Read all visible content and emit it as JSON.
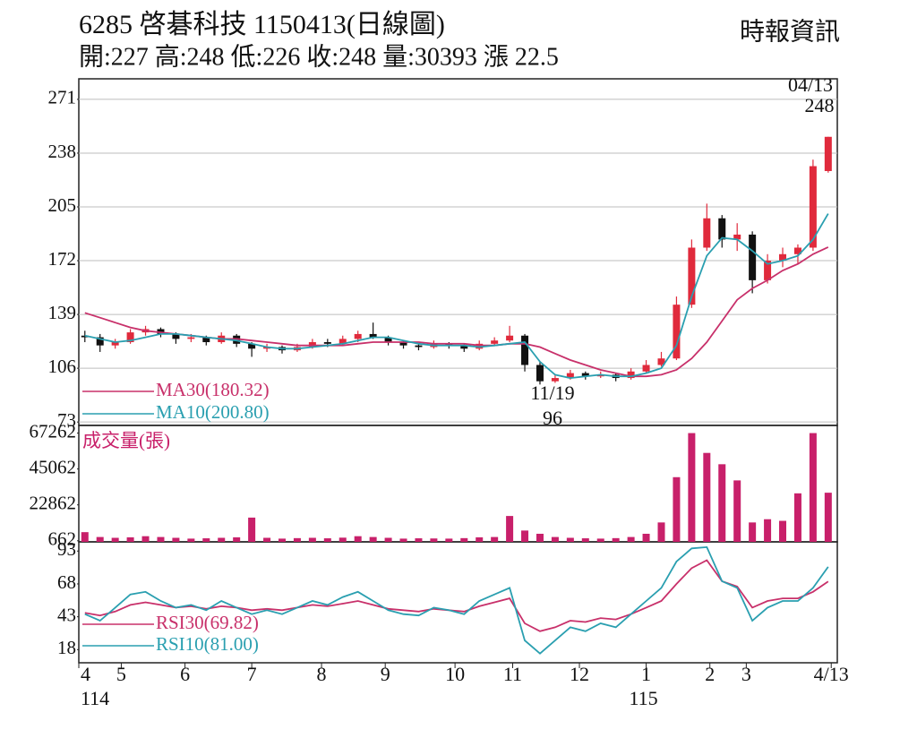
{
  "chart_data": [
    {
      "type": "candlestick",
      "title": "6285  啓碁科技 1150413(日線圖)",
      "stats": "開:227 高:248 低:226 收:248 量:30393 漲 22.5",
      "source": "時報資訊",
      "x": [
        2,
        7,
        12,
        17,
        22,
        27,
        32,
        37,
        42,
        47,
        52,
        57,
        62,
        67,
        72,
        77,
        82,
        87,
        92,
        97,
        102,
        107,
        112,
        117,
        122,
        127,
        132,
        137,
        142,
        147,
        152,
        157,
        162,
        167,
        172,
        177,
        182,
        187,
        192,
        197,
        202,
        207,
        212,
        217,
        222,
        227,
        232,
        237,
        242,
        247
      ],
      "open": [
        126,
        125,
        120,
        122,
        128,
        130,
        127,
        124,
        125,
        122,
        126,
        121,
        118,
        119,
        117,
        119,
        122,
        121,
        124,
        127,
        125,
        122,
        120,
        119,
        121,
        120,
        118,
        121,
        123,
        126,
        108,
        98,
        100,
        103,
        101,
        102,
        100,
        104,
        108,
        112,
        145,
        180,
        198,
        185,
        188,
        160,
        172,
        176,
        180,
        227
      ],
      "high": [
        129,
        127,
        124,
        130,
        132,
        131,
        128,
        127,
        126,
        128,
        127,
        122,
        121,
        120,
        121,
        124,
        124,
        126,
        129,
        134,
        126,
        123,
        121,
        123,
        122,
        121,
        123,
        125,
        132,
        127,
        110,
        102,
        105,
        104,
        104,
        103,
        106,
        111,
        116,
        150,
        185,
        207,
        200,
        195,
        190,
        176,
        180,
        182,
        234,
        248
      ],
      "low": [
        122,
        116,
        118,
        121,
        126,
        125,
        121,
        122,
        120,
        121,
        119,
        113,
        116,
        115,
        116,
        118,
        119,
        120,
        122,
        124,
        120,
        118,
        117,
        118,
        118,
        116,
        117,
        120,
        122,
        104,
        96,
        97,
        99,
        99,
        100,
        98,
        99,
        103,
        107,
        111,
        143,
        178,
        180,
        178,
        152,
        158,
        168,
        170,
        178,
        226
      ],
      "close": [
        125,
        120,
        122,
        128,
        130,
        127,
        124,
        125,
        122,
        126,
        121,
        118,
        119,
        117,
        119,
        122,
        121,
        124,
        127,
        125,
        122,
        120,
        119,
        121,
        120,
        118,
        121,
        123,
        126,
        108,
        98,
        100,
        103,
        101,
        102,
        100,
        104,
        108,
        112,
        145,
        180,
        198,
        185,
        188,
        160,
        172,
        176,
        180,
        230,
        248
      ],
      "up_color": "#e02a3c",
      "down_color": "#111111",
      "xlim": [
        0,
        250
      ],
      "xticks": [
        {
          "value": 0,
          "label": "4"
        },
        {
          "value": 14,
          "label": "5"
        },
        {
          "value": 35,
          "label": "6"
        },
        {
          "value": 57,
          "label": "7"
        },
        {
          "value": 80,
          "label": "8"
        },
        {
          "value": 101,
          "label": "9"
        },
        {
          "value": 124,
          "label": "10"
        },
        {
          "value": 143,
          "label": "11"
        },
        {
          "value": 165,
          "label": "12"
        },
        {
          "value": 187,
          "label": "1"
        },
        {
          "value": 208,
          "label": "2"
        },
        {
          "value": 220,
          "label": "3"
        },
        {
          "value": 248,
          "label": "4/13"
        }
      ],
      "year_labels": [
        {
          "value": 0,
          "label": "114"
        },
        {
          "value": 187,
          "label": "115"
        }
      ],
      "ylim": [
        72,
        277
      ],
      "yticks": [
        73,
        106,
        139,
        172,
        205,
        238,
        271
      ],
      "grid": true,
      "series": [
        {
          "name": "MA30(180.32)",
          "color": "#c8306a",
          "values": [
            140,
            137,
            134,
            131,
            129,
            128,
            127,
            126,
            125,
            124,
            124,
            123,
            122,
            121,
            120,
            120,
            120,
            120,
            121,
            122,
            122,
            122,
            122,
            121,
            121,
            121,
            120,
            120,
            121,
            121,
            119,
            115,
            111,
            108,
            105,
            103,
            101,
            101,
            102,
            105,
            112,
            122,
            135,
            148,
            155,
            160,
            166,
            170,
            176,
            180.32
          ]
        },
        {
          "name": "MA10(200.80)",
          "color": "#2a9fb0",
          "values": [
            126,
            124,
            122,
            123,
            125,
            127,
            127,
            126,
            125,
            124,
            123,
            121,
            119,
            118,
            118,
            119,
            120,
            121,
            123,
            125,
            125,
            123,
            121,
            120,
            120,
            120,
            119,
            120,
            121,
            122,
            110,
            102,
            100,
            101,
            102,
            101,
            101,
            103,
            106,
            120,
            150,
            175,
            186,
            185,
            178,
            170,
            172,
            175,
            185,
            200.8
          ]
        }
      ],
      "annotations": [
        {
          "date": "04/13",
          "value": 248
        },
        {
          "date": "11/19",
          "value": 96
        }
      ]
    },
    {
      "type": "bar",
      "title": "成交量(張)",
      "color": "#c8206a",
      "values": [
        6000,
        3000,
        2500,
        2800,
        3500,
        3000,
        2500,
        2000,
        2200,
        2500,
        2800,
        15000,
        2500,
        2000,
        2300,
        2500,
        2200,
        2600,
        3500,
        3000,
        2500,
        2000,
        2200,
        2100,
        2000,
        2300,
        2800,
        3000,
        16000,
        7000,
        5000,
        3000,
        2500,
        2200,
        2000,
        2300,
        3000,
        5000,
        12000,
        40000,
        67262,
        55000,
        48000,
        38000,
        12000,
        14000,
        13000,
        30000,
        67262,
        30393
      ],
      "ylim": [
        0,
        72000
      ],
      "yticks": [
        662,
        22862,
        45062,
        67262
      ]
    },
    {
      "type": "line",
      "ylim": [
        8,
        100
      ],
      "yticks": [
        18,
        43,
        68,
        93
      ],
      "series": [
        {
          "name": "RSI30(69.82)",
          "color": "#c8306a",
          "values": [
            46,
            44,
            47,
            52,
            54,
            52,
            50,
            51,
            49,
            51,
            50,
            48,
            49,
            48,
            50,
            52,
            51,
            53,
            55,
            52,
            49,
            48,
            47,
            49,
            48,
            47,
            51,
            54,
            57,
            38,
            32,
            35,
            40,
            39,
            42,
            41,
            45,
            50,
            55,
            68,
            80,
            86,
            70,
            66,
            50,
            55,
            57,
            57,
            62,
            69.82
          ]
        },
        {
          "name": "RSI10(81.00)",
          "color": "#2a9fb0",
          "values": [
            45,
            40,
            50,
            60,
            62,
            55,
            50,
            52,
            48,
            55,
            50,
            45,
            48,
            45,
            50,
            55,
            52,
            58,
            62,
            55,
            48,
            45,
            44,
            50,
            48,
            45,
            55,
            60,
            65,
            25,
            15,
            25,
            35,
            32,
            38,
            35,
            45,
            55,
            65,
            85,
            95,
            96,
            70,
            65,
            40,
            50,
            55,
            55,
            65,
            81
          ]
        }
      ]
    }
  ]
}
